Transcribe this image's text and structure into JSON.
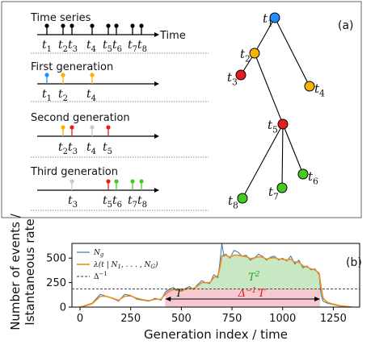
{
  "panel_a": {
    "tag": "(a)",
    "time_series_title": "Time series",
    "time_axis_label": "Time",
    "first_generation_title": "First generation",
    "second_generation_title": "Second generation",
    "third_generation_title": "Third generation",
    "event_labels": {
      "time_series": [
        "1",
        "2",
        "3",
        "4",
        "5",
        "6",
        "7",
        "8"
      ],
      "first": [
        "1",
        "2",
        "4"
      ],
      "second": [
        "2",
        "3",
        "4",
        "5"
      ],
      "third": [
        "3",
        "5",
        "6",
        "7",
        "8"
      ]
    },
    "tree_nodes": [
      {
        "id": "t1",
        "sub": "1",
        "color": "#1e90ff"
      },
      {
        "id": "t2",
        "sub": "2",
        "color": "#f5b400"
      },
      {
        "id": "t3",
        "sub": "3",
        "color": "#e81c1c"
      },
      {
        "id": "t4",
        "sub": "4",
        "color": "#f5b400"
      },
      {
        "id": "t5",
        "sub": "5",
        "color": "#e81c1c"
      },
      {
        "id": "t6",
        "sub": "6",
        "color": "#44cc22"
      },
      {
        "id": "t7",
        "sub": "7",
        "color": "#44cc22"
      },
      {
        "id": "t8",
        "sub": "8",
        "color": "#44cc22"
      }
    ],
    "tree_edges": [
      [
        "t1",
        "t2"
      ],
      [
        "t2",
        "t3"
      ],
      [
        "t2",
        "t5"
      ],
      [
        "t1",
        "t4"
      ],
      [
        "t5",
        "t6"
      ],
      [
        "t5",
        "t7"
      ],
      [
        "t5",
        "t8"
      ]
    ]
  },
  "chart_data": {
    "type": "line",
    "tag": "(b)",
    "ylabel_line1": "Number of events /",
    "ylabel_line2": "Istantaneous rate",
    "xlabel": "Generation index / time",
    "xlim": [
      -40,
      1380
    ],
    "ylim": [
      0,
      650
    ],
    "xticks": [
      0,
      250,
      500,
      750,
      1000,
      1250
    ],
    "yticks": [
      0,
      250,
      500
    ],
    "series": [
      {
        "name": "N_g",
        "color": "#2a7ab9",
        "x": [
          0,
          30,
          60,
          100,
          130,
          160,
          190,
          220,
          250,
          280,
          310,
          340,
          370,
          400,
          420,
          440,
          460,
          480,
          500,
          520,
          540,
          560,
          580,
          600,
          620,
          640,
          660,
          680,
          690,
          700,
          710,
          720,
          740,
          760,
          780,
          800,
          820,
          840,
          860,
          880,
          900,
          920,
          940,
          960,
          980,
          1000,
          1020,
          1040,
          1060,
          1080,
          1100,
          1120,
          1140,
          1160,
          1180,
          1190,
          1200,
          1220,
          1240,
          1260,
          1280,
          1300,
          1320,
          1340
        ],
        "y": [
          0,
          20,
          40,
          130,
          110,
          90,
          60,
          130,
          120,
          80,
          70,
          60,
          90,
          70,
          150,
          180,
          200,
          170,
          160,
          190,
          210,
          180,
          230,
          270,
          250,
          240,
          330,
          300,
          450,
          650,
          520,
          540,
          500,
          580,
          560,
          520,
          530,
          480,
          500,
          540,
          520,
          480,
          510,
          520,
          480,
          500,
          470,
          520,
          440,
          480,
          400,
          420,
          380,
          390,
          330,
          120,
          60,
          40,
          30,
          20,
          10,
          10,
          5,
          0
        ]
      },
      {
        "name": "λ(t | N_1, ..., N_G)",
        "color": "#f28c18",
        "x": [
          0,
          30,
          60,
          100,
          130,
          160,
          190,
          220,
          250,
          280,
          310,
          340,
          370,
          400,
          420,
          440,
          460,
          480,
          500,
          520,
          540,
          560,
          580,
          600,
          620,
          640,
          660,
          680,
          690,
          700,
          710,
          720,
          740,
          760,
          780,
          800,
          820,
          840,
          860,
          880,
          900,
          920,
          940,
          960,
          980,
          1000,
          1020,
          1040,
          1060,
          1080,
          1100,
          1120,
          1140,
          1160,
          1180,
          1190,
          1200,
          1220,
          1240,
          1260,
          1280,
          1300,
          1320,
          1340
        ],
        "y": [
          0,
          15,
          35,
          110,
          110,
          90,
          70,
          110,
          115,
          90,
          75,
          65,
          80,
          80,
          130,
          160,
          180,
          175,
          165,
          180,
          195,
          190,
          215,
          250,
          250,
          250,
          300,
          320,
          400,
          520,
          540,
          530,
          510,
          530,
          530,
          520,
          515,
          495,
          500,
          515,
          510,
          490,
          500,
          505,
          490,
          490,
          480,
          490,
          460,
          460,
          420,
          410,
          390,
          380,
          345,
          200,
          90,
          50,
          35,
          25,
          15,
          10,
          5,
          0
        ]
      },
      {
        "name": "Δ^-1",
        "color": "#333333",
        "style": "dashed",
        "x": [
          -40,
          1380
        ],
        "y": [
          185,
          185
        ]
      }
    ],
    "annotations": {
      "T_label": "T",
      "T2_label": "T",
      "T2_sup": "2",
      "delta_T_label": "Δ",
      "delta_T_sup": "−1",
      "delta_T_suffix": "T",
      "T_span": [
        420,
        1185
      ],
      "green_fill_color": "#c7e8c2",
      "pink_fill_color": "#f6c9d0",
      "red_label_color": "#e41a1c",
      "green_label_color": "#2ca02c"
    },
    "legend": {
      "position": "top-left",
      "items": [
        {
          "label": "N",
          "sub": "g"
        },
        {
          "label": "λ(t | N",
          "sub": "1",
          "tail": ", . . . , N",
          "sub2": "G",
          "close": ")"
        },
        {
          "label": "Δ",
          "sup": "−1"
        }
      ]
    }
  }
}
